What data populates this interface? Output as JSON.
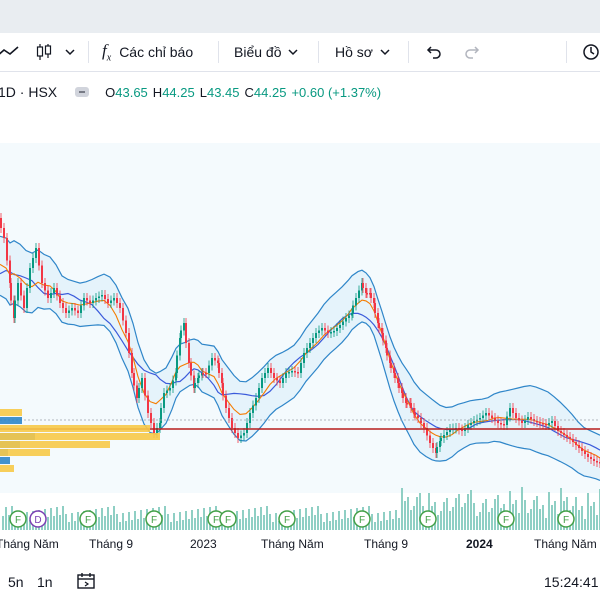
{
  "toolbar": {
    "indicators_label": "Các chỉ báo",
    "chart_label": "Biểu đồ",
    "profile_label": "Hồ sơ"
  },
  "legend": {
    "symbol": "1D · HSX",
    "open_prefix": "O",
    "open": "43.65",
    "high_prefix": "H",
    "high": "44.25",
    "low_prefix": "L",
    "low": "43.45",
    "close_prefix": "C",
    "close": "44.25",
    "change": "+0.60 (+1.37%)",
    "up_color": "#089981"
  },
  "x_axis": {
    "labels": [
      "Tháng Năm",
      "Tháng 9",
      "2023",
      "Tháng Năm",
      "Tháng 9",
      "2024",
      "Tháng Năm"
    ]
  },
  "events": [
    "F",
    "D",
    "F",
    "F",
    "F",
    "F",
    "F",
    "F",
    "F",
    "F",
    "F"
  ],
  "bottom": {
    "range_5n": "5n",
    "range_1n": "1n",
    "time": "15:24:41"
  },
  "colors": {
    "accent": "#2962ff",
    "up": "#089981",
    "down": "#f23645",
    "bands": "#2f86c9",
    "band_fill": "#e1f1fa",
    "support_line": "#b71c1c",
    "volume_profile": "#f7c948",
    "volume_profile_blue": "#2f86c9",
    "event_green": "#43a047",
    "event_purple": "#7b3fb3"
  },
  "icons": [
    "line-icon",
    "candles-icon",
    "chevron-down-icon",
    "fx-icon",
    "undo-icon",
    "redo-icon",
    "snapshot-icon",
    "calendar-icon"
  ]
}
